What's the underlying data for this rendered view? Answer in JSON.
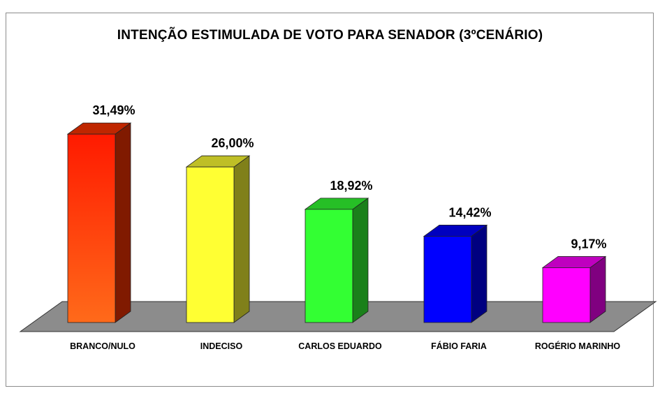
{
  "chart_data": {
    "type": "bar",
    "title": "INTENÇÃO ESTIMULADA DE VOTO PARA SENADOR (3ºCENÁRIO)",
    "categories": [
      "BRANCO/NULO",
      "INDECISO",
      "CARLOS EDUARDO",
      "FÁBIO FARIA",
      "ROGÉRIO MARINHO"
    ],
    "values": [
      31.49,
      26.0,
      18.92,
      14.42,
      9.17
    ],
    "value_labels": [
      "31,49%",
      "26,00%",
      "18,92%",
      "14,42%",
      "9,17%"
    ],
    "colors": [
      "#ff3300",
      "#ffff33",
      "#33ff33",
      "#0000ff",
      "#ff00ff"
    ],
    "ylim": [
      0,
      35
    ],
    "grid": false,
    "legend": "none",
    "style": "3d-bar"
  }
}
